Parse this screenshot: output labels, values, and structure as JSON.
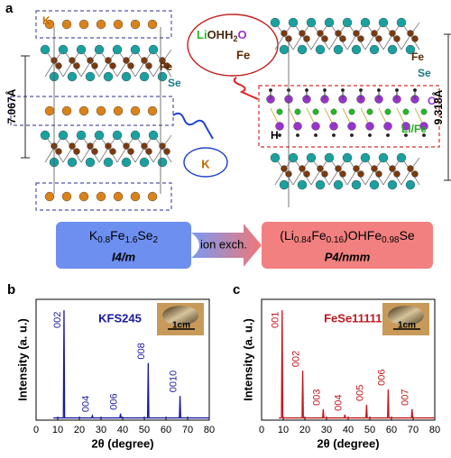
{
  "panel_a": {
    "letter": "a",
    "left": {
      "k_top": "K",
      "fe": "Fe",
      "se": "Se",
      "spacing": "7.067Å",
      "k_bubble": "K"
    },
    "right": {
      "bubble_formula": [
        "Li",
        "OH",
        "H",
        "2",
        "O"
      ],
      "bubble_fe": "Fe",
      "fe": "Fe",
      "se": "Se",
      "o": "O",
      "h": "H",
      "li_fe": "Li/Fe",
      "spacing": "9.318Å"
    },
    "left_formula": [
      "K",
      "0.8",
      "Fe",
      "1.6",
      "Se",
      "2"
    ],
    "left_group": "I4/m",
    "arrow_label": "ion exch.",
    "right_formula": [
      "(Li",
      "0.84",
      "Fe",
      "0.16",
      ")OHFe",
      "0.98",
      "Se"
    ],
    "right_group": "P4/nmm"
  },
  "chart_data": [
    {
      "type": "line",
      "panel": "b",
      "title": "KFS245",
      "xlabel": "2θ (degree)",
      "ylabel": "Intensity (a. u.)",
      "color": "#1a1aa0",
      "inset_label": "1cm",
      "x": [
        8,
        12.6,
        12.9,
        13.2,
        25.7,
        26,
        26.3,
        38.7,
        39,
        39.3,
        51.5,
        51.8,
        52.1,
        66.2,
        66.5,
        66.8,
        80
      ],
      "values": [
        0.02,
        0.02,
        1.0,
        0.02,
        0.02,
        0.04,
        0.02,
        0.02,
        0.06,
        0.02,
        0.02,
        0.52,
        0.02,
        0.02,
        0.22,
        0.02,
        0.02
      ],
      "peaks": [
        {
          "label": "002",
          "x": 12.9
        },
        {
          "label": "004",
          "x": 26
        },
        {
          "label": "006",
          "x": 39
        },
        {
          "label": "008",
          "x": 51.8
        },
        {
          "label": "0010",
          "x": 66.5
        }
      ],
      "xlim": [
        0,
        80
      ],
      "xticks": [
        0,
        10,
        20,
        30,
        40,
        50,
        60,
        70,
        80
      ],
      "ylim": [
        0,
        1.1
      ]
    },
    {
      "type": "line",
      "panel": "c",
      "title": "FeSe11111",
      "xlabel": "2θ (degree)",
      "ylabel": "Intensity (a. u.)",
      "color": "#c0171e",
      "inset_label": "1cm",
      "x": [
        8,
        9.2,
        9.5,
        9.8,
        18.7,
        19,
        19.3,
        28.2,
        28.5,
        28.8,
        38.2,
        38.5,
        38.8,
        48.2,
        48.5,
        48.8,
        58.2,
        58.5,
        58.8,
        69.2,
        69.5,
        69.8,
        80
      ],
      "values": [
        0.02,
        0.02,
        1.0,
        0.02,
        0.02,
        0.45,
        0.02,
        0.02,
        0.1,
        0.02,
        0.02,
        0.05,
        0.02,
        0.02,
        0.14,
        0.02,
        0.02,
        0.28,
        0.02,
        0.02,
        0.1,
        0.02,
        0.02
      ],
      "peaks": [
        {
          "label": "001",
          "x": 9.5
        },
        {
          "label": "002",
          "x": 19
        },
        {
          "label": "003",
          "x": 28.5
        },
        {
          "label": "004",
          "x": 38.5
        },
        {
          "label": "005",
          "x": 48.5
        },
        {
          "label": "006",
          "x": 58.5
        },
        {
          "label": "007",
          "x": 69.5
        }
      ],
      "xlim": [
        0,
        80
      ],
      "xticks": [
        0,
        10,
        20,
        30,
        40,
        50,
        60,
        70,
        80
      ],
      "ylim": [
        0,
        1.1
      ]
    }
  ]
}
